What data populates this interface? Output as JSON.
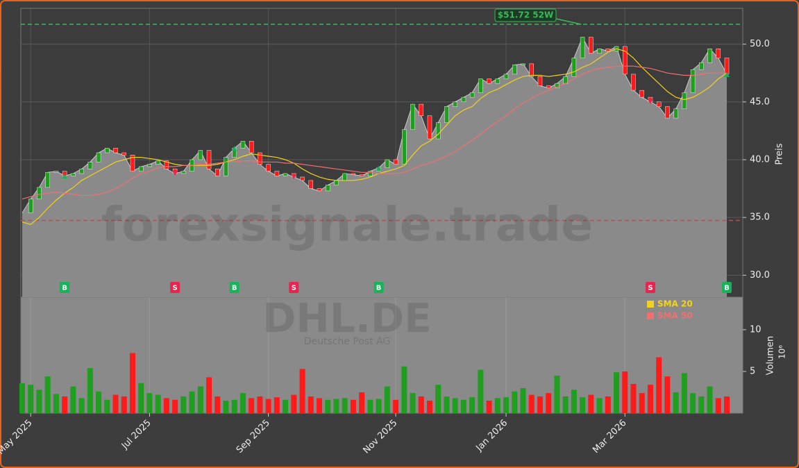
{
  "chart_data": {
    "type": "candlestick",
    "watermark": "forexsignale.trade",
    "symbol": "DHL.DE",
    "company": "Deutsche Post AG",
    "categories": [
      null,
      "May 2025",
      null,
      null,
      null,
      null,
      null,
      null,
      null,
      null,
      null,
      null,
      null,
      null,
      null,
      "Jul 2025",
      null,
      null,
      null,
      null,
      null,
      null,
      null,
      null,
      null,
      null,
      null,
      null,
      null,
      "Sep 2025",
      null,
      null,
      null,
      null,
      null,
      null,
      null,
      null,
      null,
      null,
      null,
      null,
      null,
      null,
      "Nov 2025",
      null,
      null,
      null,
      null,
      null,
      null,
      null,
      null,
      null,
      null,
      null,
      null,
      "Jan 2026",
      null,
      null,
      null,
      null,
      null,
      null,
      null,
      null,
      null,
      null,
      null,
      null,
      null,
      "Mar 2026",
      null,
      null,
      null,
      null,
      null,
      null,
      null,
      null,
      null,
      null,
      null,
      null
    ],
    "close": [
      35.4,
      36.6,
      37.6,
      38.9,
      39.0,
      38.6,
      38.8,
      39.2,
      39.8,
      40.6,
      41.0,
      40.6,
      40.4,
      39.0,
      39.4,
      39.6,
      39.9,
      39.2,
      38.8,
      39.0,
      40.0,
      40.8,
      39.2,
      38.6,
      40.2,
      41.0,
      41.6,
      40.6,
      39.6,
      39.0,
      38.6,
      38.8,
      38.5,
      38.2,
      37.5,
      37.3,
      37.8,
      38.2,
      38.8,
      38.7,
      38.6,
      39.0,
      39.3,
      40.0,
      39.6,
      42.6,
      44.8,
      43.8,
      41.8,
      43.2,
      44.6,
      45.0,
      45.4,
      45.8,
      47.0,
      46.6,
      47.0,
      47.4,
      48.2,
      48.3,
      47.2,
      46.4,
      46.2,
      46.6,
      47.2,
      48.8,
      50.6,
      49.2,
      49.6,
      49.4,
      49.8,
      47.4,
      46.0,
      45.4,
      45.0,
      44.6,
      43.6,
      44.4,
      45.8,
      47.8,
      48.4,
      49.6,
      48.8,
      47.4
    ],
    "series": [
      {
        "name": "SMA 20",
        "color": "#f2d21b",
        "values": [
          34.6,
          34.4,
          35.0,
          35.8,
          36.5,
          37.1,
          37.6,
          38.2,
          38.6,
          39.0,
          39.4,
          39.8,
          40.0,
          40.2,
          40.2,
          40.1,
          40.0,
          39.8,
          39.6,
          39.5,
          39.5,
          39.5,
          39.5,
          39.6,
          39.8,
          40.0,
          40.3,
          40.5,
          40.4,
          40.3,
          40.2,
          40.0,
          39.7,
          39.2,
          38.8,
          38.5,
          38.3,
          38.2,
          38.2,
          38.2,
          38.3,
          38.5,
          38.8,
          39.0,
          39.2,
          39.5,
          40.4,
          41.2,
          41.6,
          42.2,
          43.0,
          43.8,
          44.3,
          44.6,
          45.3,
          45.8,
          46.1,
          46.5,
          46.9,
          47.2,
          47.3,
          47.3,
          47.2,
          47.3,
          47.4,
          47.6,
          48.0,
          48.3,
          48.8,
          49.3,
          49.6,
          49.4,
          48.8,
          48.0,
          47.3,
          46.6,
          45.9,
          45.4,
          45.2,
          45.4,
          45.8,
          46.3,
          47.0,
          47.5
        ]
      },
      {
        "name": "SMA 50",
        "color": "#f07070",
        "values": [
          36.6,
          36.8,
          37.0,
          37.1,
          37.2,
          37.1,
          37.0,
          36.9,
          36.9,
          37.0,
          37.2,
          37.5,
          37.9,
          38.4,
          38.8,
          39.0,
          39.3,
          39.4,
          39.4,
          39.5,
          39.5,
          39.6,
          39.6,
          39.7,
          39.8,
          39.8,
          39.9,
          39.9,
          39.8,
          39.8,
          39.8,
          39.7,
          39.7,
          39.6,
          39.5,
          39.4,
          39.3,
          39.2,
          39.1,
          39.0,
          38.9,
          38.9,
          38.8,
          38.8,
          38.8,
          38.9,
          39.2,
          39.5,
          39.7,
          40.0,
          40.3,
          40.7,
          41.2,
          41.7,
          42.2,
          42.8,
          43.3,
          43.8,
          44.4,
          44.9,
          45.3,
          45.7,
          46.0,
          46.3,
          46.6,
          47.0,
          47.4,
          47.7,
          47.9,
          48.0,
          48.1,
          48.1,
          48.1,
          48.0,
          47.9,
          47.7,
          47.5,
          47.4,
          47.3,
          47.3,
          47.4,
          47.5,
          47.5,
          47.5
        ]
      }
    ],
    "ylim": [
      28.1,
      53.1
    ],
    "yticks": [
      {
        "value": 30,
        "label": "30.0"
      },
      {
        "value": 35,
        "label": "35.0"
      },
      {
        "value": 40,
        "label": "40.0"
      },
      {
        "value": 45,
        "label": "45.0"
      },
      {
        "value": 50,
        "label": "50.0"
      }
    ],
    "y_axis_label": "Preis",
    "up_color": "#1f9e1f",
    "down_color": "#ff1a1a",
    "area_color": "#8a8a8a",
    "grid": true,
    "volume": {
      "values": [
        3.6,
        3.4,
        2.8,
        4.4,
        2.3,
        2.0,
        3.2,
        1.8,
        5.4,
        2.6,
        1.6,
        2.2,
        2.0,
        7.2,
        3.6,
        2.4,
        2.2,
        1.8,
        1.6,
        2.0,
        2.6,
        3.2,
        4.3,
        2.0,
        1.5,
        1.6,
        2.4,
        1.8,
        2.0,
        1.7,
        1.9,
        1.6,
        2.2,
        5.3,
        2.0,
        1.8,
        1.6,
        1.7,
        1.8,
        1.6,
        2.5,
        1.6,
        1.7,
        3.2,
        1.6,
        5.6,
        2.4,
        2.0,
        1.5,
        3.4,
        2.0,
        1.8,
        1.6,
        1.9,
        5.2,
        1.5,
        1.8,
        1.9,
        2.6,
        3.0,
        2.2,
        2.0,
        2.4,
        4.5,
        2.0,
        2.8,
        1.9,
        2.2,
        1.8,
        2.0,
        4.9,
        5.0,
        3.5,
        2.4,
        3.4,
        6.7,
        4.4,
        2.5,
        4.8,
        2.4,
        2.0,
        3.2,
        1.8,
        2.0
      ],
      "ylim": [
        0,
        13.9
      ],
      "yticks": [
        5,
        10
      ],
      "axis_label": "Volumen",
      "unit_label": "10⁶"
    },
    "reference_lines": [
      {
        "value": 51.72,
        "label": "$51.72 52W",
        "color": "#3cb85c"
      },
      {
        "value": 34.74,
        "color": "#d9413a"
      }
    ],
    "signals": [
      {
        "index": 5,
        "label": "B"
      },
      {
        "index": 18,
        "label": "S"
      },
      {
        "index": 25,
        "label": "B"
      },
      {
        "index": 32,
        "label": "S"
      },
      {
        "index": 42,
        "label": "B"
      },
      {
        "index": 74,
        "label": "S"
      },
      {
        "index": 83,
        "label": "B"
      }
    ],
    "signal_colors": {
      "B": "#16b35a",
      "S": "#e8254f"
    }
  }
}
